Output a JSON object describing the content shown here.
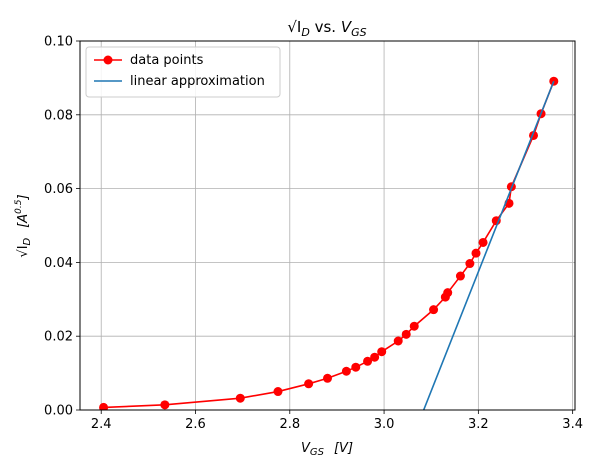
{
  "chart_data": {
    "type": "line",
    "title_main": "√I",
    "title_sub": "D",
    "title_vs": " vs. ",
    "title_v": "V",
    "title_vsub": "GS",
    "xlabel_main": "V",
    "xlabel_sub": "GS",
    "xlabel_unit": "[V]",
    "ylabel_main": "√I",
    "ylabel_sub": "D",
    "ylabel_unit_pre": "[A",
    "ylabel_unit_sup": "0.5",
    "ylabel_unit_post": "]",
    "xlim": [
      2.355,
      3.405
    ],
    "ylim": [
      0,
      0.1
    ],
    "xticks": [
      2.4,
      2.6,
      2.8,
      3.0,
      3.2,
      3.4
    ],
    "xtick_labels": [
      "2.4",
      "2.6",
      "2.8",
      "3.0",
      "3.2",
      "3.4"
    ],
    "yticks": [
      0.0,
      0.02,
      0.04,
      0.06,
      0.08,
      0.1
    ],
    "ytick_labels": [
      "0.00",
      "0.02",
      "0.04",
      "0.06",
      "0.08",
      "0.10"
    ],
    "grid": true,
    "legend_position": "top-left",
    "series": [
      {
        "name": "data points",
        "color": "#ff0000",
        "style": "line-marker",
        "x": [
          2.405,
          2.535,
          2.695,
          2.775,
          2.84,
          2.88,
          2.92,
          2.94,
          2.965,
          2.98,
          2.995,
          3.03,
          3.047,
          3.064,
          3.105,
          3.13,
          3.135,
          3.162,
          3.182,
          3.195,
          3.21,
          3.238,
          3.265,
          3.27,
          3.317,
          3.333,
          3.36
        ],
        "y": [
          0.0007,
          0.0014,
          0.0032,
          0.005,
          0.0071,
          0.0086,
          0.0105,
          0.0116,
          0.0132,
          0.0143,
          0.0158,
          0.0187,
          0.0205,
          0.0227,
          0.0272,
          0.0306,
          0.0318,
          0.0363,
          0.0397,
          0.0425,
          0.0454,
          0.0513,
          0.056,
          0.0605,
          0.0744,
          0.0803,
          0.0891
        ]
      },
      {
        "name": "linear approximation",
        "color": "#1f77b4",
        "style": "line",
        "x": [
          3.084,
          3.36
        ],
        "y": [
          0.0,
          0.0891
        ]
      }
    ]
  }
}
